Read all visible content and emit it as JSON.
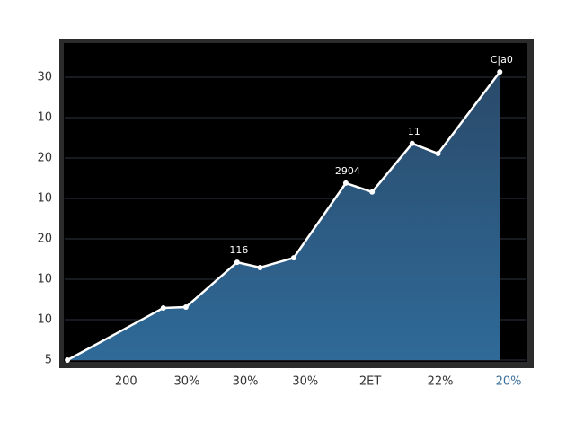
{
  "chart_data": {
    "type": "area",
    "x": [
      0.6,
      21.4,
      26.3,
      37.4,
      42.4,
      49.7,
      61.0,
      66.7,
      75.4,
      81.0,
      94.4
    ],
    "series": [
      {
        "color": "#ffffff",
        "values": [
          0,
          1.29,
          1.31,
          2.42,
          2.29,
          2.53,
          4.38,
          4.16,
          5.36,
          5.11,
          7.13
        ]
      }
    ],
    "xlim": [
      0,
      100
    ],
    "ylim": [
      0,
      7.8
    ],
    "xticks": [
      {
        "value": 13.3,
        "label": "200"
      },
      {
        "value": 26.5,
        "label": "30%"
      },
      {
        "value": 39.2,
        "label": "30%"
      },
      {
        "value": 52.2,
        "label": "30%"
      },
      {
        "value": 66.3,
        "label": "2ET"
      },
      {
        "value": 81.5,
        "label": "22%"
      },
      {
        "value": 96.3,
        "label": "20%"
      }
    ],
    "yticks": [
      {
        "value": 0,
        "label": "5"
      },
      {
        "value": 1,
        "label": "10"
      },
      {
        "value": 2,
        "label": "10"
      },
      {
        "value": 3,
        "label": "20"
      },
      {
        "value": 4,
        "label": "10"
      },
      {
        "value": 5,
        "label": "20"
      },
      {
        "value": 6,
        "label": "10"
      },
      {
        "value": 7,
        "label": "30"
      }
    ],
    "annotations": [
      {
        "text": "116",
        "point": 3
      },
      {
        "text": "2904",
        "point": 6
      },
      {
        "text": "11",
        "point": 8
      },
      {
        "text": "C|a0",
        "point": 10
      }
    ],
    "grid": true,
    "area_colors": [
      "#2a4a6a",
      "#2f6a98"
    ]
  }
}
